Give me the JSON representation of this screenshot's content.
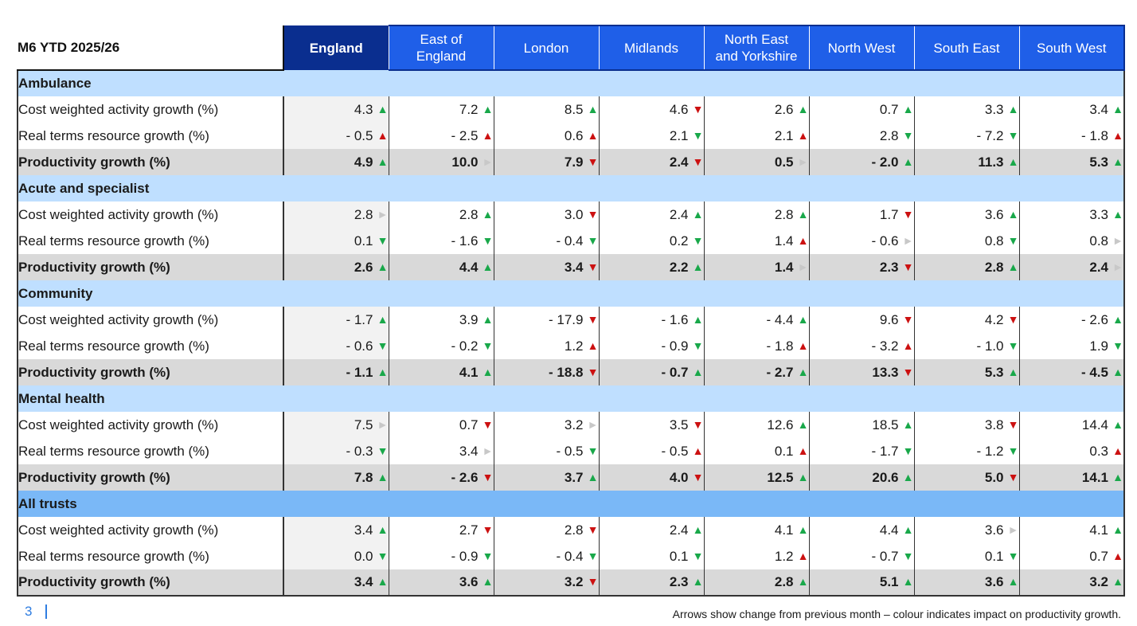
{
  "table": {
    "title": "M6 YTD 2025/26",
    "columns": [
      "England",
      "East of England",
      "London",
      "Midlands",
      "North East and Yorkshire",
      "North West",
      "South East",
      "South West"
    ],
    "column_lines": [
      [
        "England"
      ],
      [
        "East of",
        "England"
      ],
      [
        "London"
      ],
      [
        "Midlands"
      ],
      [
        "North East",
        "and Yorkshire"
      ],
      [
        "North West"
      ],
      [
        "South East"
      ],
      [
        "South West"
      ]
    ],
    "sections": [
      {
        "name": "Ambulance",
        "rows": [
          {
            "label": "Cost weighted activity growth (%)",
            "values": [
              "4.3",
              "7.2",
              "8.5",
              "4.6",
              "2.6",
              "0.7",
              "3.3",
              "3.4"
            ],
            "arrows": [
              "up-green",
              "up-green",
              "up-green",
              "down-red",
              "up-green",
              "up-green",
              "up-green",
              "up-green"
            ]
          },
          {
            "label": "Real terms resource growth (%)",
            "values": [
              "- 0.5",
              "- 2.5",
              "0.6",
              "2.1",
              "2.1",
              "2.8",
              "- 7.2",
              "- 1.8"
            ],
            "arrows": [
              "up-red",
              "up-red",
              "up-red",
              "down-green",
              "up-red",
              "down-green",
              "down-green",
              "up-red"
            ]
          },
          {
            "label": "Productivity growth (%)",
            "bold": true,
            "values": [
              "4.9",
              "10.0",
              "7.9",
              "2.4",
              "0.5",
              "- 2.0",
              "11.3",
              "5.3"
            ],
            "arrows": [
              "up-green",
              "flat",
              "down-red",
              "down-red",
              "flat",
              "up-green",
              "up-green",
              "up-green"
            ]
          }
        ]
      },
      {
        "name": "Acute and specialist",
        "rows": [
          {
            "label": "Cost weighted activity growth (%)",
            "values": [
              "2.8",
              "2.8",
              "3.0",
              "2.4",
              "2.8",
              "1.7",
              "3.6",
              "3.3"
            ],
            "arrows": [
              "flat",
              "up-green",
              "down-red",
              "up-green",
              "up-green",
              "down-red",
              "up-green",
              "up-green"
            ]
          },
          {
            "label": "Real terms resource growth (%)",
            "values": [
              "0.1",
              "- 1.6",
              "- 0.4",
              "0.2",
              "1.4",
              "- 0.6",
              "0.8",
              "0.8"
            ],
            "arrows": [
              "down-green",
              "down-green",
              "down-green",
              "down-green",
              "up-red",
              "flat",
              "down-green",
              "flat"
            ]
          },
          {
            "label": "Productivity growth (%)",
            "bold": true,
            "values": [
              "2.6",
              "4.4",
              "3.4",
              "2.2",
              "1.4",
              "2.3",
              "2.8",
              "2.4"
            ],
            "arrows": [
              "up-green",
              "up-green",
              "down-red",
              "up-green",
              "flat",
              "down-red",
              "up-green",
              "flat"
            ]
          }
        ]
      },
      {
        "name": "Community",
        "rows": [
          {
            "label": "Cost weighted activity growth (%)",
            "values": [
              "- 1.7",
              "3.9",
              "- 17.9",
              "- 1.6",
              "- 4.4",
              "9.6",
              "4.2",
              "- 2.6"
            ],
            "arrows": [
              "up-green",
              "up-green",
              "down-red",
              "up-green",
              "up-green",
              "down-red",
              "down-red",
              "up-green"
            ]
          },
          {
            "label": "Real terms resource growth (%)",
            "values": [
              "- 0.6",
              "- 0.2",
              "1.2",
              "- 0.9",
              "- 1.8",
              "- 3.2",
              "- 1.0",
              "1.9"
            ],
            "arrows": [
              "down-green",
              "down-green",
              "up-red",
              "down-green",
              "up-red",
              "up-red",
              "down-green",
              "down-green"
            ]
          },
          {
            "label": "Productivity growth (%)",
            "bold": true,
            "values": [
              "- 1.1",
              "4.1",
              "- 18.8",
              "- 0.7",
              "- 2.7",
              "13.3",
              "5.3",
              "- 4.5"
            ],
            "arrows": [
              "up-green",
              "up-green",
              "down-red",
              "up-green",
              "up-green",
              "down-red",
              "up-green",
              "up-green"
            ]
          }
        ]
      },
      {
        "name": "Mental health",
        "rows": [
          {
            "label": "Cost weighted activity growth (%)",
            "values": [
              "7.5",
              "0.7",
              "3.2",
              "3.5",
              "12.6",
              "18.5",
              "3.8",
              "14.4"
            ],
            "arrows": [
              "flat",
              "down-red",
              "flat",
              "down-red",
              "up-green",
              "up-green",
              "down-red",
              "up-green"
            ]
          },
          {
            "label": "Real terms resource growth (%)",
            "values": [
              "- 0.3",
              "3.4",
              "- 0.5",
              "- 0.5",
              "0.1",
              "- 1.7",
              "- 1.2",
              "0.3"
            ],
            "arrows": [
              "down-green",
              "flat",
              "down-green",
              "up-red",
              "up-red",
              "down-green",
              "down-green",
              "up-red"
            ]
          },
          {
            "label": "Productivity growth (%)",
            "bold": true,
            "values": [
              "7.8",
              "- 2.6",
              "3.7",
              "4.0",
              "12.5",
              "20.6",
              "5.0",
              "14.1"
            ],
            "arrows": [
              "up-green",
              "down-red",
              "up-green",
              "down-red",
              "up-green",
              "up-green",
              "down-red",
              "up-green"
            ]
          }
        ]
      },
      {
        "name": "All trusts",
        "highlight": true,
        "rows": [
          {
            "label": "Cost weighted activity growth (%)",
            "values": [
              "3.4",
              "2.7",
              "2.8",
              "2.4",
              "4.1",
              "4.4",
              "3.6",
              "4.1"
            ],
            "arrows": [
              "up-green",
              "down-red",
              "down-red",
              "up-green",
              "up-green",
              "up-green",
              "flat",
              "up-green"
            ]
          },
          {
            "label": "Real terms resource growth (%)",
            "values": [
              "0.0",
              "- 0.9",
              "- 0.4",
              "0.1",
              "1.2",
              "- 0.7",
              "0.1",
              "0.7"
            ],
            "arrows": [
              "down-green",
              "down-green",
              "down-green",
              "down-green",
              "up-red",
              "down-green",
              "down-green",
              "up-red"
            ]
          },
          {
            "label": "Productivity growth (%)",
            "bold": true,
            "values": [
              "3.4",
              "3.6",
              "3.2",
              "2.3",
              "2.8",
              "5.1",
              "3.6",
              "3.2"
            ],
            "arrows": [
              "up-green",
              "up-green",
              "down-red",
              "up-green",
              "up-green",
              "up-green",
              "up-green",
              "up-green"
            ]
          }
        ]
      }
    ]
  },
  "colors": {
    "england_header": "#0a2e8f",
    "region_header": "#1f5fe8",
    "section_band": "#bfdfff",
    "all_trusts_band": "#7ab8f7",
    "arrow_green": "#19a84a",
    "arrow_red": "#cc1111",
    "arrow_flat": "#c8c8c8"
  },
  "footer": {
    "page_number": "3",
    "note": "Arrows show change from previous month – colour indicates impact on productivity growth."
  }
}
